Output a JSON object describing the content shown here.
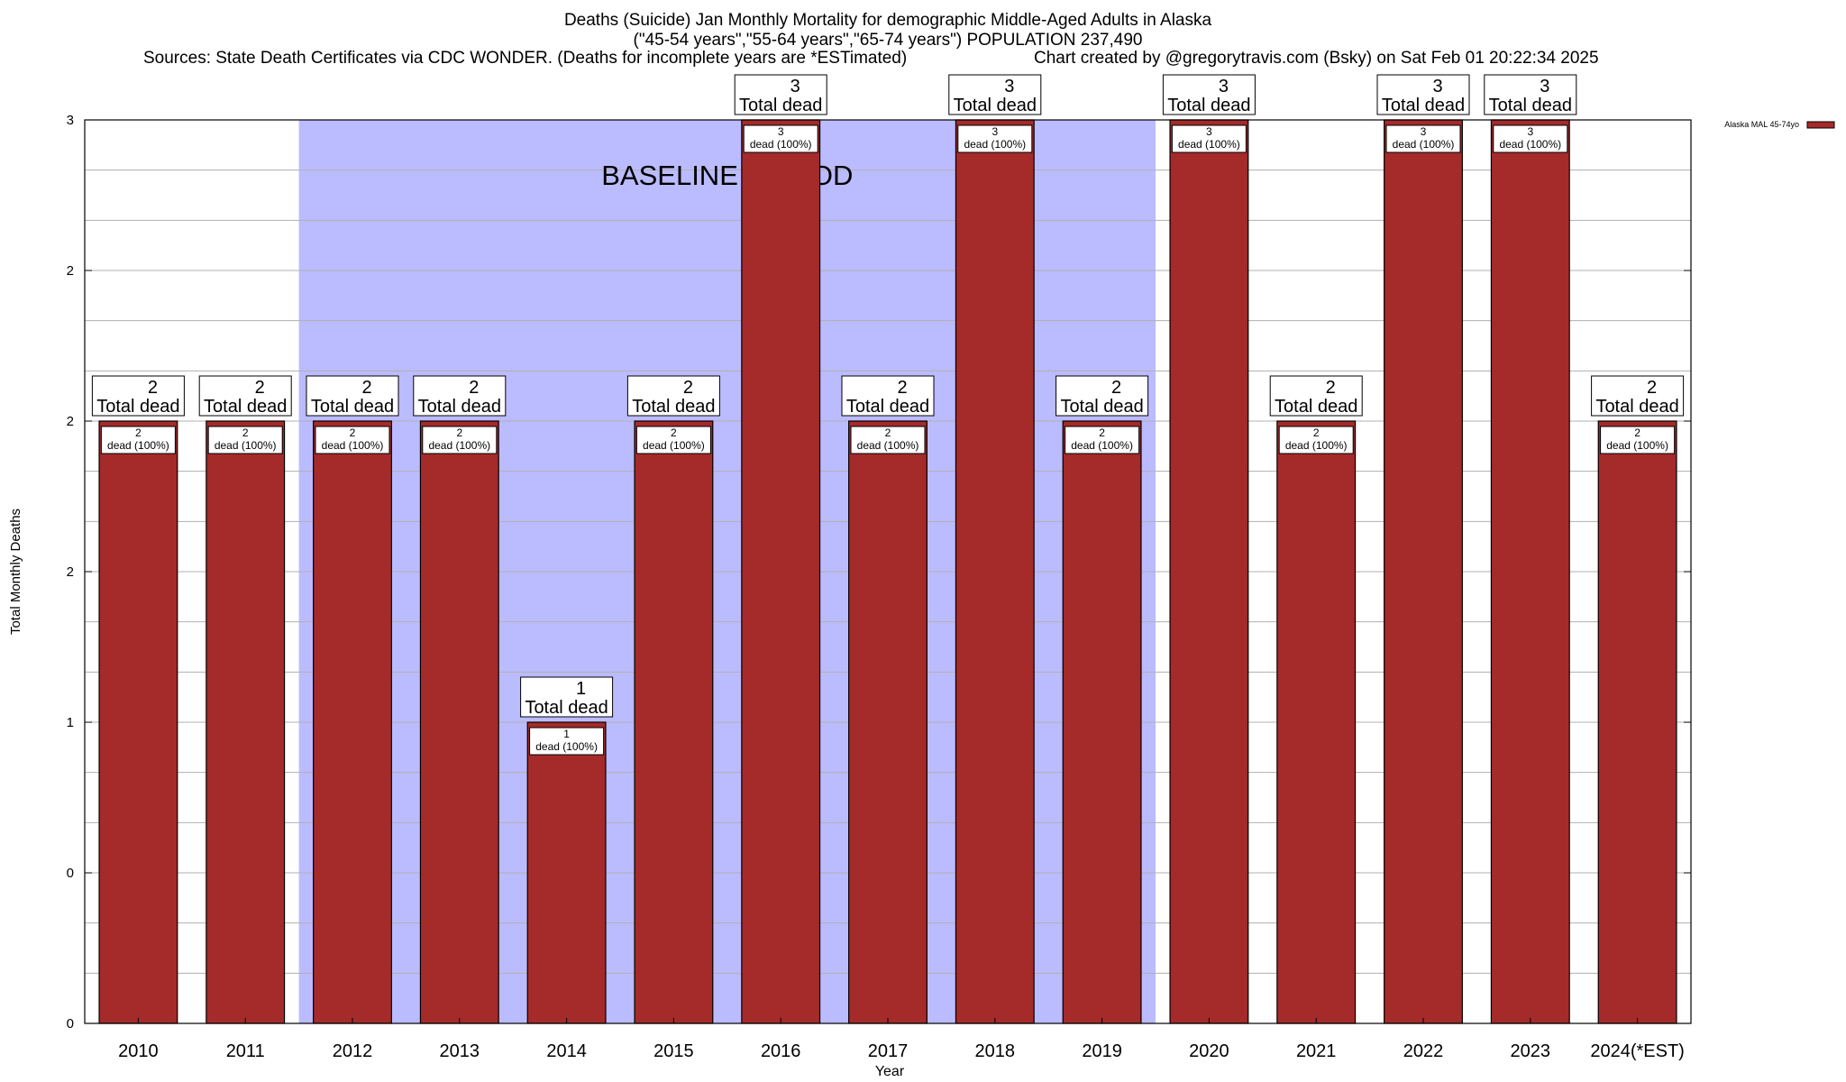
{
  "chart_data": {
    "type": "bar",
    "title": "Deaths (Suicide) Jan Monthly Mortality for demographic Middle-Aged Adults in Alaska",
    "subtitle": "(\"45-54 years\",\"55-64 years\",\"65-74 years\") POPULATION 237,490",
    "sources": "Sources: State Death Certificates via CDC WONDER. (Deaths for incomplete years are *ESTimated)",
    "credit": "Chart created by @gregorytravis.com (Bsky) on Sat Feb 01 20:22:34 2025",
    "xlabel": "Year",
    "ylabel": "Total Monthly Deaths",
    "ylim": [
      0,
      3
    ],
    "yticks": [
      0,
      0.5,
      1,
      1.5,
      2,
      2.5,
      3
    ],
    "ytick_labels": [
      "0",
      "0",
      "1",
      "2",
      "2",
      "2",
      "3"
    ],
    "grid": true,
    "legend_position": "top-right",
    "categories": [
      "2010",
      "2011",
      "2012",
      "2013",
      "2014",
      "2015",
      "2016",
      "2017",
      "2018",
      "2019",
      "2020",
      "2021",
      "2022",
      "2023",
      "2024(*EST)"
    ],
    "series": [
      {
        "name": "Alaska MAL 45-74yo",
        "color": "#a52a2a",
        "values": [
          2,
          2,
          2,
          2,
          1,
          2,
          3,
          2,
          3,
          2,
          3,
          2,
          3,
          3,
          2
        ]
      }
    ],
    "top_label_suffix": "Total dead",
    "inner_label_suffix": "dead (100%)",
    "baseline": {
      "label": "BASELINE PERIOD",
      "start": "2012",
      "end": "2019",
      "color": "#bbbbff"
    }
  }
}
